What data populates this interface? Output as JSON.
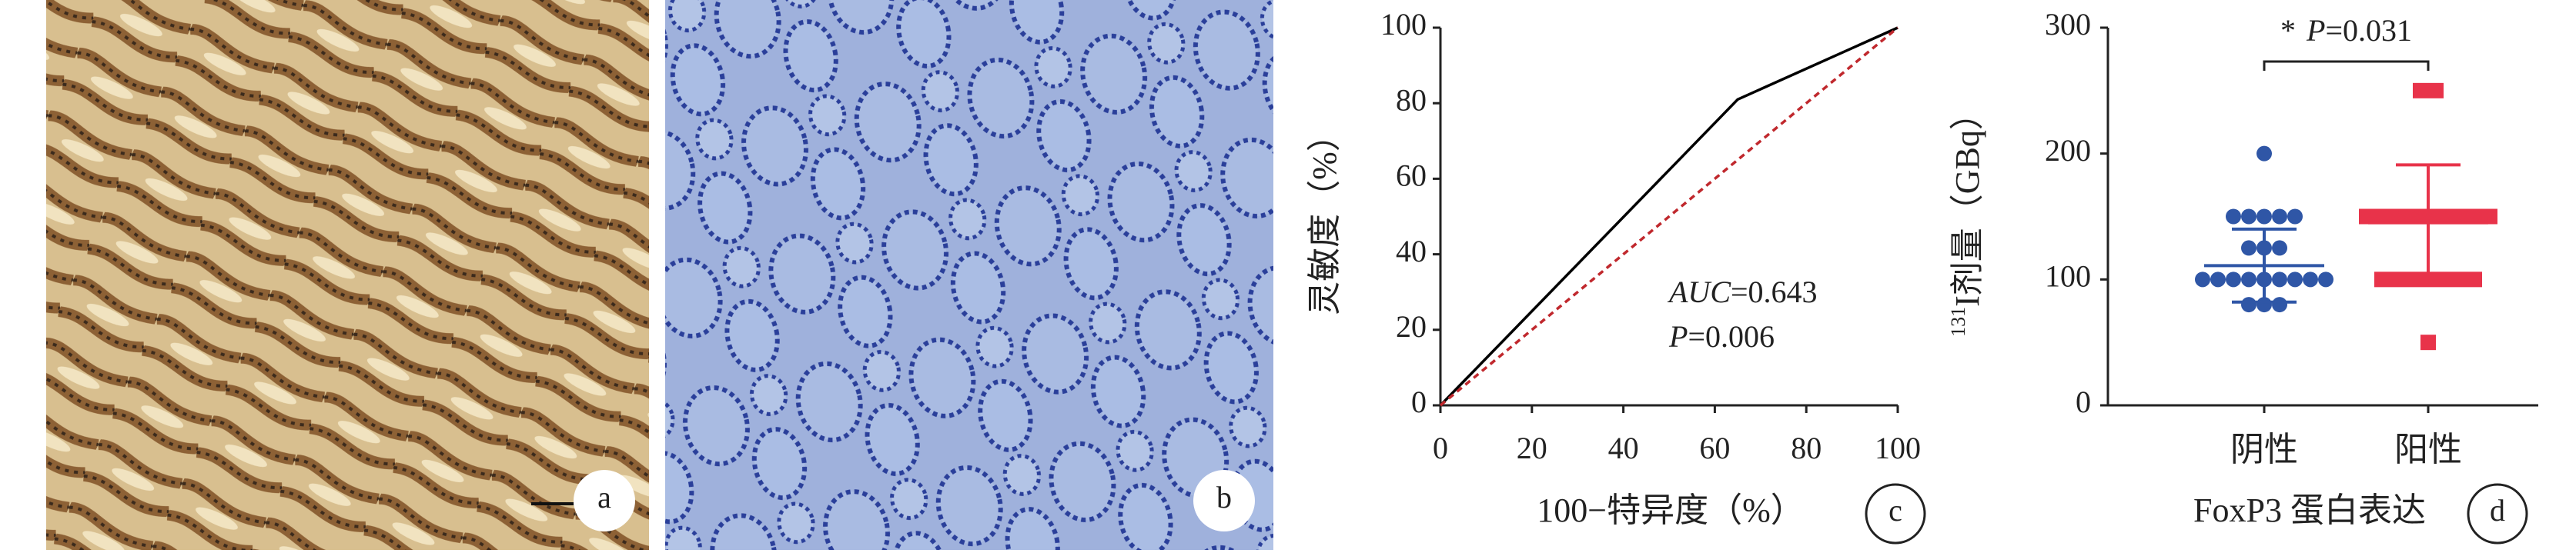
{
  "micrographs": [
    {
      "label": "a"
    },
    {
      "label": "b"
    }
  ],
  "chart_data": [
    {
      "type": "line",
      "panel": "c",
      "xlabel": "100−特异度（%）",
      "ylabel": "灵敏度（%）",
      "xlim": [
        0,
        100
      ],
      "xticks": [
        0,
        20,
        40,
        60,
        80,
        100
      ],
      "ylim": [
        0,
        100
      ],
      "yticks": [
        0,
        20,
        40,
        60,
        80,
        100
      ],
      "series": [
        {
          "color": "#000000",
          "dash": false,
          "x": [
            0,
            65,
            100
          ],
          "y": [
            0,
            81,
            100
          ]
        },
        {
          "color": "#c0282d",
          "dash": true,
          "x": [
            0,
            100
          ],
          "y": [
            0,
            100
          ]
        }
      ],
      "annotations": [
        {
          "var": "AUC",
          "text": "=0.643"
        },
        {
          "var": "P",
          "text": "=0.006"
        }
      ]
    },
    {
      "type": "scatter",
      "panel": "d",
      "xlabel": "FoxP3 蛋白表达",
      "ylabel": {
        "sup": "131",
        "text": "I剂量（GBq）"
      },
      "categories": [
        "阴性",
        "阳性"
      ],
      "ylim": [
        0,
        300
      ],
      "yticks": [
        0,
        100,
        200,
        300
      ],
      "series": [
        {
          "color": "#2f56a6",
          "marker": "circle",
          "mean": 111,
          "sd": 29,
          "values": [
            200,
            150,
            150,
            150,
            150,
            150,
            125,
            125,
            125,
            100,
            100,
            100,
            100,
            100,
            100,
            100,
            100,
            100,
            80,
            80,
            80
          ]
        },
        {
          "color": "#e8334a",
          "marker": "square",
          "mean": 145,
          "sd": 46,
          "values": [
            250,
            250,
            150,
            150,
            150,
            150,
            150,
            150,
            150,
            150,
            150,
            100,
            100,
            100,
            100,
            100,
            100,
            100,
            50
          ]
        }
      ],
      "significance": {
        "mark": "*",
        "var": "P",
        "text": "=0.031"
      }
    }
  ]
}
